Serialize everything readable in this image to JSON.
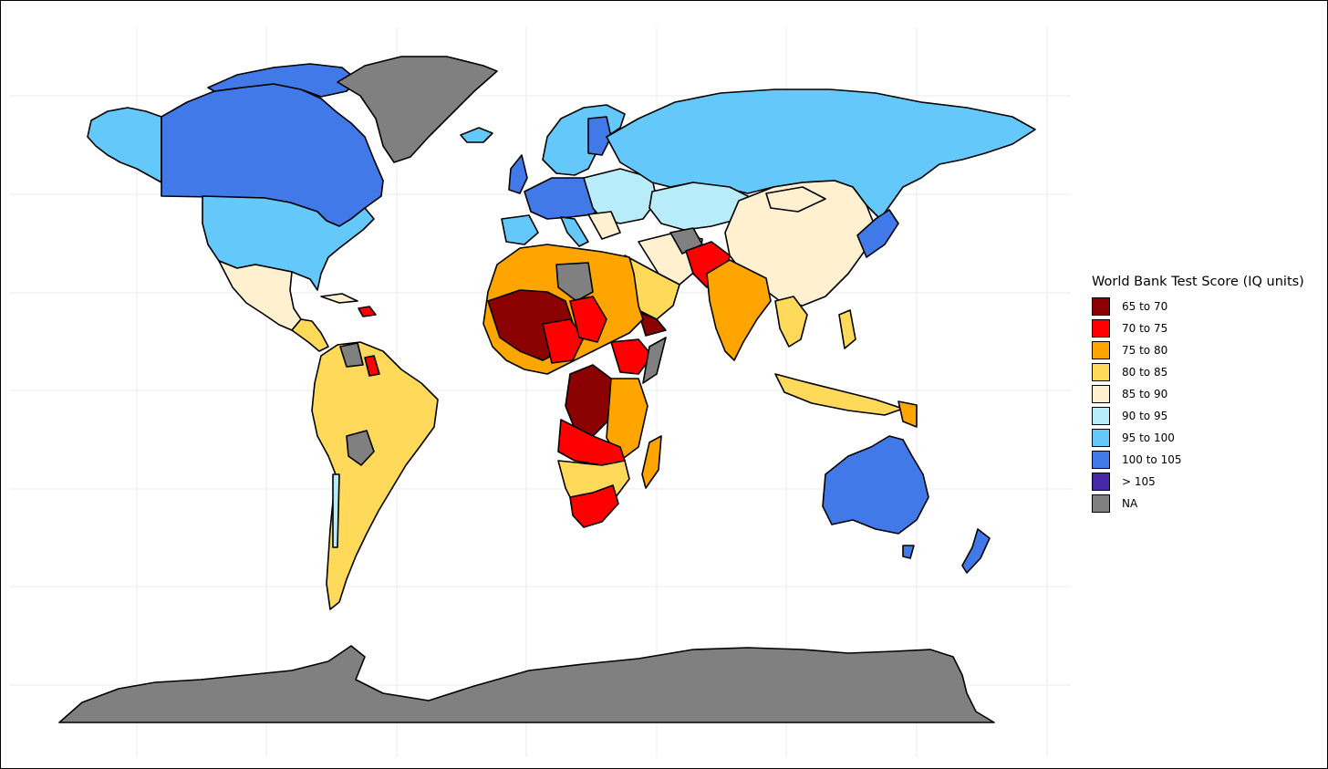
{
  "legend": {
    "title": "World Bank Test Score (IQ units)",
    "items": [
      {
        "label": "65 to 70",
        "color": "#8b0000"
      },
      {
        "label": "70 to 75",
        "color": "#ff0000"
      },
      {
        "label": "75 to 80",
        "color": "#ffa500"
      },
      {
        "label": "80 to 85",
        "color": "#ffd95a"
      },
      {
        "label": "85 to 90",
        "color": "#fff0d0"
      },
      {
        "label": "90 to 95",
        "color": "#b9ecfb"
      },
      {
        "label": "95 to 100",
        "color": "#64c8fb"
      },
      {
        "label": "100 to 105",
        "color": "#4279e8"
      },
      {
        "label": "> 105",
        "color": "#4527a8"
      },
      {
        "label": "NA",
        "color": "#808080"
      }
    ]
  }
}
